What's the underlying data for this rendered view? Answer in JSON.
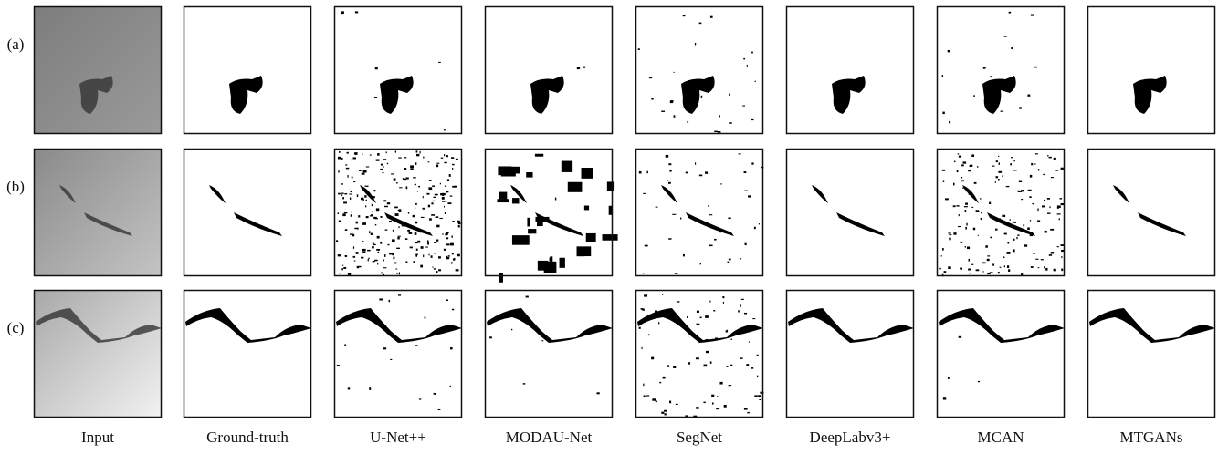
{
  "row_labels": [
    "(a)",
    "(b)",
    "(c)"
  ],
  "column_labels": [
    "Input",
    "Ground-truth",
    "U-Net++",
    "MODAU-Net",
    "SegNet",
    "DeepLabv3+",
    "MCAN",
    "MTGANs"
  ]
}
